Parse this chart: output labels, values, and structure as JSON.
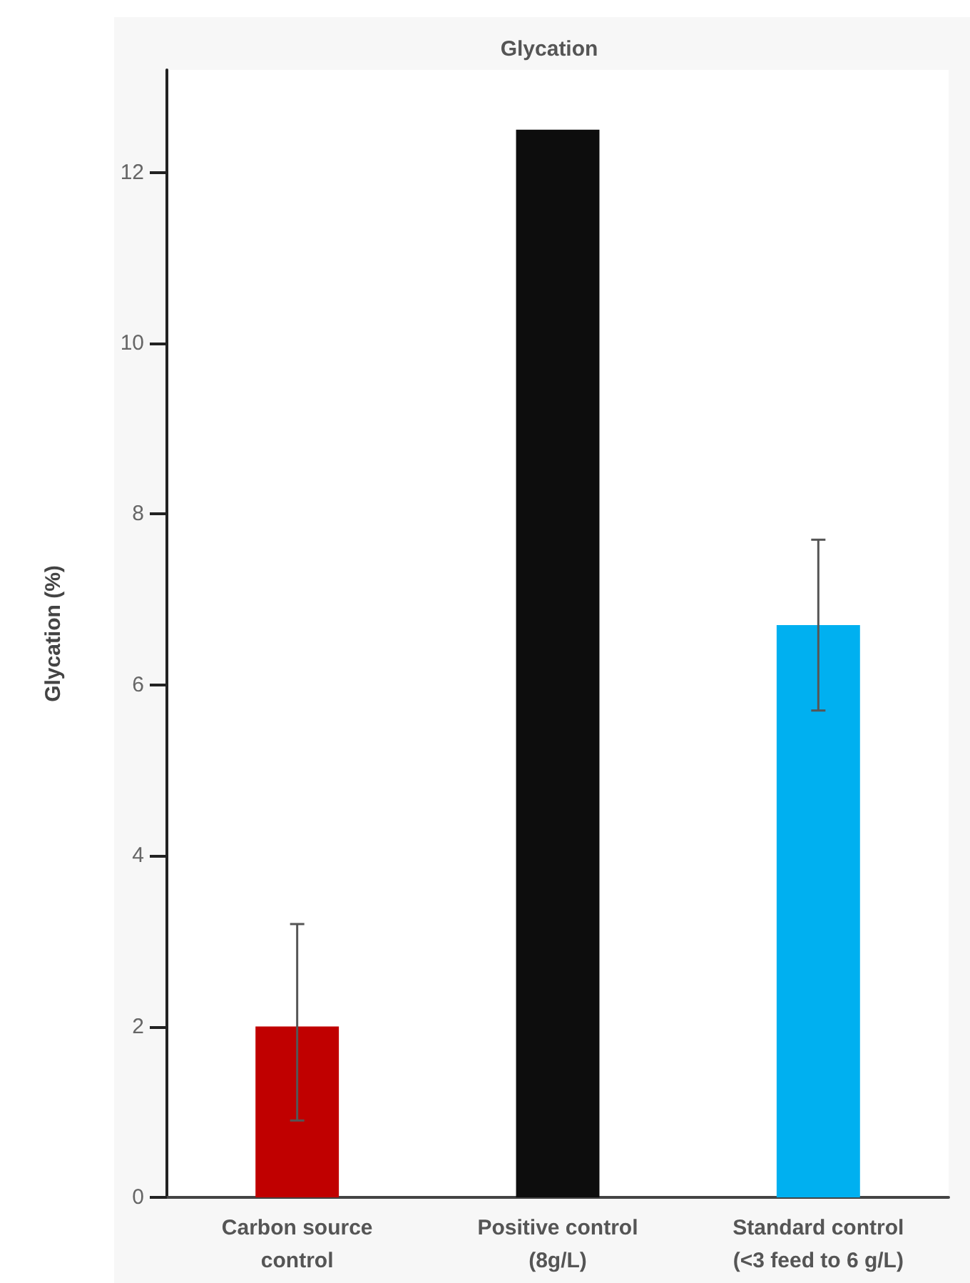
{
  "chart_data": {
    "type": "bar",
    "title": "Glycation",
    "ylabel": "Glycation (%)",
    "categories": [
      "Carbon source\ncontrol",
      "Positive control\n(8g/L)",
      "Standard control\n(<3 feed to 6 g/L)"
    ],
    "values": [
      2.0,
      12.5,
      6.7
    ],
    "colors": [
      "#c00000",
      "#0d0d0d",
      "#00b0f0"
    ],
    "errors": [
      [
        0.9,
        3.2
      ],
      null,
      [
        5.7,
        7.7
      ]
    ],
    "ylim": [
      0,
      13.2
    ],
    "yticks": [
      0,
      2,
      4,
      6,
      8,
      10,
      12
    ]
  }
}
